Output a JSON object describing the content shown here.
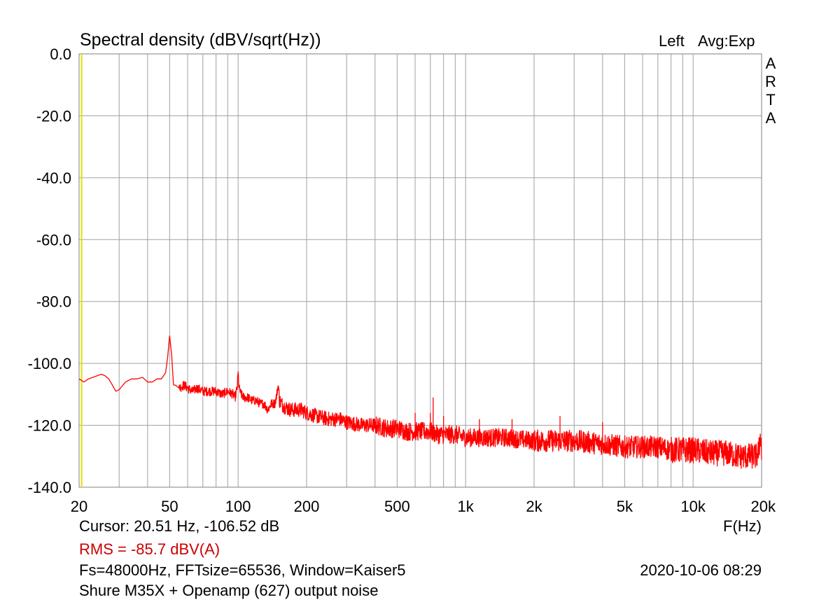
{
  "header": {
    "title": "Spectral density (dBV/sqrt(Hz))",
    "channel": "Left",
    "averaging": "Avg:Exp",
    "brand": "ARTA"
  },
  "footer": {
    "cursor": "Cursor: 20.51 Hz, -106.52 dB",
    "rms": "RMS =  -85.7 dBV(A)",
    "params": "Fs=48000Hz, FFTsize=65536, Window=Kaiser5",
    "datetime": "2020-10-06  08:29",
    "description": "Shure M35X + Openamp (627) output noise"
  },
  "colors": {
    "trace": "#ff0000",
    "cursor": "#e0e000",
    "rms": "#cc0000"
  },
  "chart_data": {
    "type": "line",
    "title": "Spectral density (dBV/sqrt(Hz))",
    "xlabel": "F(Hz)",
    "xscale": "log",
    "xlim": [
      20,
      20000
    ],
    "ylim": [
      -140,
      0
    ],
    "grid": true,
    "x_ticks": [
      {
        "v": 20,
        "label": "20"
      },
      {
        "v": 50,
        "label": "50"
      },
      {
        "v": 100,
        "label": "100"
      },
      {
        "v": 200,
        "label": "200"
      },
      {
        "v": 500,
        "label": "500"
      },
      {
        "v": 1000,
        "label": "1k"
      },
      {
        "v": 2000,
        "label": "2k"
      },
      {
        "v": 5000,
        "label": "5k"
      },
      {
        "v": 10000,
        "label": "10k"
      },
      {
        "v": 20000,
        "label": "20k"
      }
    ],
    "y_ticks": [
      {
        "v": 0,
        "label": "0.0"
      },
      {
        "v": -20,
        "label": "-20.0"
      },
      {
        "v": -40,
        "label": "-40.0"
      },
      {
        "v": -60,
        "label": "-60.0"
      },
      {
        "v": -80,
        "label": "-80.0"
      },
      {
        "v": -100,
        "label": "-100.0"
      },
      {
        "v": -120,
        "label": "-120.0"
      },
      {
        "v": -140,
        "label": "-140.0"
      }
    ],
    "cursor_x": 20.51,
    "series": [
      {
        "color": "#ff0000",
        "x": [
          20,
          21,
          22,
          23,
          24,
          25,
          26,
          27,
          28,
          29,
          30,
          32,
          34,
          36,
          38,
          40,
          42,
          44,
          46,
          47,
          48,
          49,
          50,
          51,
          52,
          53,
          55,
          58,
          60,
          63,
          66,
          70,
          75,
          80,
          85,
          90,
          95,
          97,
          99,
          100,
          101,
          103,
          106,
          110,
          115,
          120,
          125,
          130,
          135,
          140,
          145,
          148,
          150,
          152,
          155,
          160,
          170,
          180,
          190,
          200,
          220,
          250,
          280,
          300,
          350,
          400,
          450,
          500,
          550,
          600,
          650,
          700,
          750,
          800,
          900,
          1000,
          1200,
          1500,
          2000,
          2500,
          3000,
          4000,
          5000,
          6000,
          7000,
          8000,
          10000,
          12000,
          14000,
          16000,
          18000,
          19000,
          19500,
          19800,
          20000
        ],
        "y": [
          -105,
          -106,
          -105,
          -104.5,
          -104,
          -103.5,
          -104,
          -105,
          -107,
          -109,
          -108.5,
          -106,
          -105,
          -105,
          -104.5,
          -106,
          -106,
          -105,
          -105,
          -104,
          -103,
          -98,
          -91,
          -97,
          -107,
          -107,
          -108,
          -107,
          -108,
          -109,
          -108,
          -109,
          -109,
          -109,
          -110,
          -109,
          -110,
          -111,
          -108,
          -103,
          -108,
          -110,
          -111,
          -111,
          -112,
          -112,
          -113,
          -113,
          -115,
          -113,
          -113,
          -110,
          -107,
          -112,
          -113,
          -114,
          -115,
          -115,
          -115,
          -116,
          -117,
          -118,
          -118,
          -119,
          -120,
          -120,
          -121,
          -121,
          -122,
          -122,
          -122,
          -122,
          -123,
          -123,
          -123,
          -124,
          -124,
          -124,
          -125,
          -125,
          -125,
          -126,
          -127,
          -127,
          -127,
          -128,
          -128,
          -129,
          -129,
          -130,
          -130,
          -130,
          -128,
          -122,
          -130
        ],
        "spikes": [
          {
            "x": 600,
            "y": -116
          },
          {
            "x": 700,
            "y": -116
          },
          {
            "x": 720,
            "y": -111
          },
          {
            "x": 800,
            "y": -117
          },
          {
            "x": 1150,
            "y": -118
          },
          {
            "x": 1600,
            "y": -118
          },
          {
            "x": 2600,
            "y": -117
          },
          {
            "x": 4000,
            "y": -119
          }
        ]
      }
    ]
  }
}
